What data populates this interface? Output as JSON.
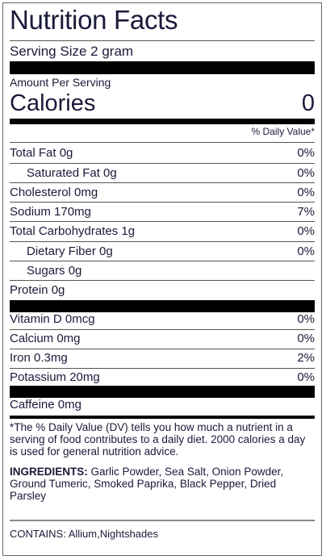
{
  "label": {
    "title": "Nutrition Facts",
    "serving_size": "Serving Size 2 gram",
    "amount_per_serving": "Amount Per Serving",
    "calories_label": "Calories",
    "calories_value": "0",
    "daily_value_header": "% Daily Value*"
  },
  "nutrients": [
    {
      "name": "Total Fat 0g",
      "pct": "0%"
    },
    {
      "name": "Saturated Fat 0g",
      "pct": "0%"
    },
    {
      "name": "Cholesterol 0mg",
      "pct": "0%"
    },
    {
      "name": "Sodium 170mg",
      "pct": "7%"
    },
    {
      "name": "Total Carbohydrates 1g",
      "pct": "0%"
    },
    {
      "name": "Dietary Fiber 0g",
      "pct": "0%"
    },
    {
      "name": "Sugars 0g",
      "pct": ""
    },
    {
      "name": "Protein 0g",
      "pct": ""
    }
  ],
  "vitamins": [
    {
      "name": "Vitamin D 0mcg",
      "pct": "0%"
    },
    {
      "name": "Calcium 0mg",
      "pct": "0%"
    },
    {
      "name": "Iron 0.3mg",
      "pct": "2%"
    },
    {
      "name": "Potassium 20mg",
      "pct": "0%"
    }
  ],
  "caffeine": "Caffeine 0mg",
  "footnote": "*The % Daily Value (DV) tells you how much a nutrient in a serving of food contributes to a daily diet. 2000 calories a day is used for general nutrition advice.",
  "ingredients": {
    "heading": "INGREDIENTS:",
    "text": " Garlic Powder, Sea Salt, Onion Powder, Ground Tumeric, Smoked Paprika, Black Pepper, Dried Parsley"
  },
  "contains": "CONTAINS: Allium,Nightshades"
}
